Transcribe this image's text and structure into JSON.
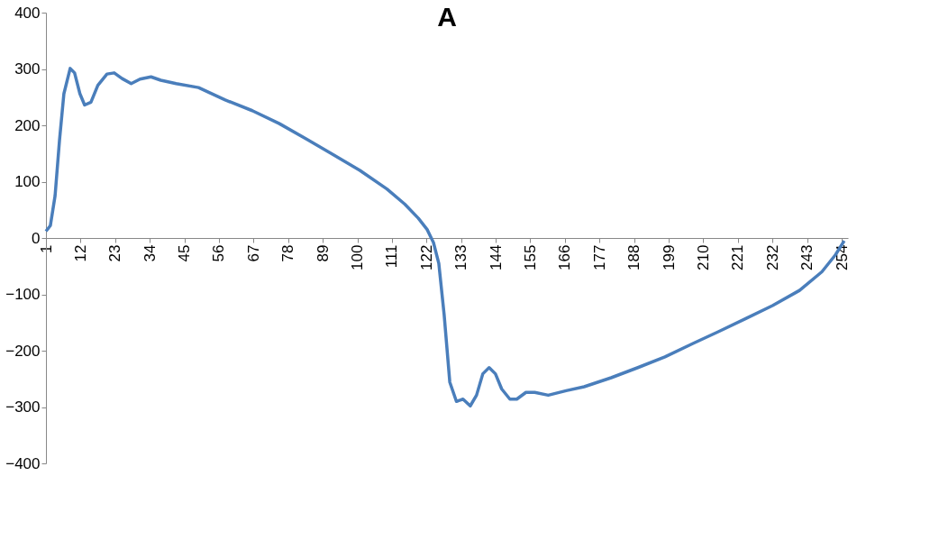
{
  "chart_data": {
    "type": "line",
    "title": "A",
    "x": [
      1,
      2.4,
      3.9,
      5.3,
      6.7,
      8.7,
      10.1,
      11.8,
      13.3,
      15.3,
      17.5,
      20.4,
      22.7,
      25.2,
      28.1,
      30.9,
      34.4,
      37.5,
      42.4,
      49.5,
      58,
      66.6,
      75.2,
      83.7,
      92.3,
      100.8,
      109.4,
      115.1,
      119.4,
      122.2,
      124.2,
      125.9,
      127.6,
      129.4,
      131.5,
      133.6,
      135.9,
      137.9,
      139.9,
      141.9,
      143.9,
      145.9,
      148.5,
      150.7,
      153.6,
      156.4,
      160.7,
      166.4,
      172.1,
      180.7,
      189.2,
      197.8,
      206.4,
      214.9,
      223.5,
      232,
      240.6,
      247.7,
      252,
      254.8
    ],
    "series": [
      {
        "color": "#4a7ebb",
        "values": [
          12,
          22,
          75,
          173,
          256,
          301,
          293,
          256,
          236,
          241,
          271,
          291,
          293,
          283,
          274,
          282,
          286,
          280,
          274,
          267,
          245,
          226,
          203,
          176,
          148,
          120,
          87,
          60,
          35,
          15,
          -8,
          -45,
          -136,
          -256,
          -290,
          -286,
          -298,
          -279,
          -241,
          -230,
          -241,
          -268,
          -286,
          -286,
          -274,
          -274,
          -279,
          -271,
          -264,
          -248,
          -230,
          -211,
          -188,
          -166,
          -143,
          -120,
          -93,
          -60,
          -30,
          -5
        ]
      }
    ],
    "xlim": [
      1,
      256
    ],
    "xticks": [
      1,
      12,
      23,
      34,
      45,
      56,
      67,
      78,
      89,
      100,
      111,
      122,
      133,
      144,
      155,
      166,
      177,
      188,
      199,
      210,
      221,
      232,
      243,
      254
    ],
    "ylim": [
      -400,
      400
    ],
    "yticks": [
      -400,
      -300,
      -200,
      -100,
      0,
      100,
      200,
      300,
      400
    ],
    "grid": false,
    "marker": "none",
    "line_style": "solid"
  }
}
